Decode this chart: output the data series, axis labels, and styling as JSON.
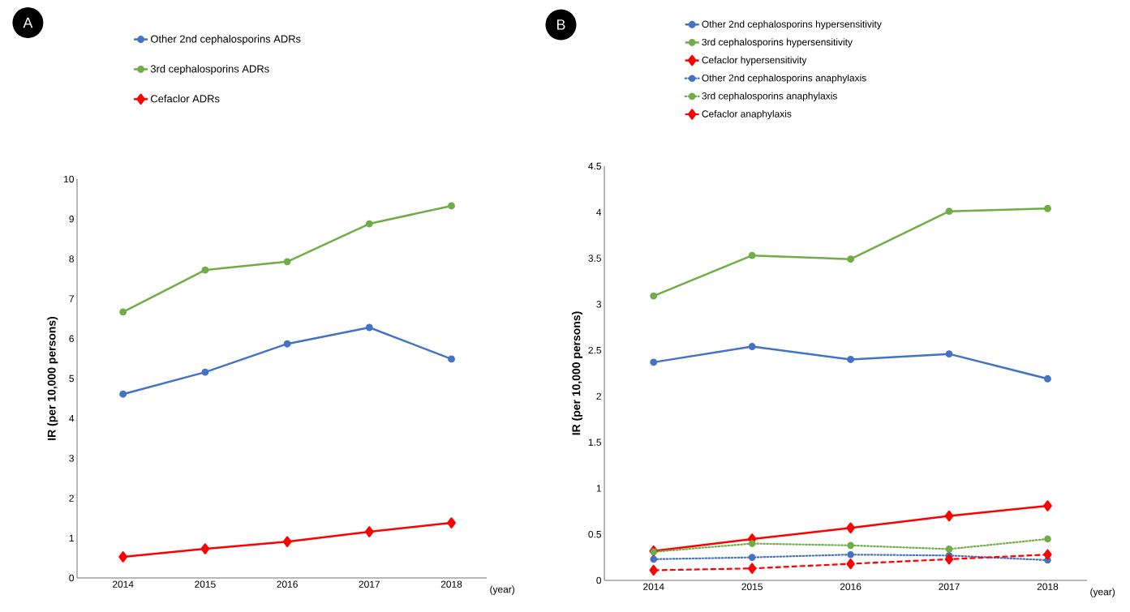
{
  "chart_data": [
    {
      "type": "line",
      "title": "A",
      "xlabel": "(year)",
      "ylabel": "IR (per 10,000 persons)",
      "categories": [
        "2014",
        "2015",
        "2016",
        "2017",
        "2018"
      ],
      "ylim": [
        0,
        10
      ],
      "yticks": [
        0,
        1,
        2,
        3,
        4,
        5,
        6,
        7,
        8,
        9,
        10
      ],
      "legend": "top",
      "grid": false,
      "series": [
        {
          "name": "Other 2nd cephalosporins ADRs",
          "color": "#4472c4",
          "marker": "circle",
          "line_style": "solid",
          "values": [
            4.61,
            5.16,
            5.87,
            6.28,
            5.49
          ]
        },
        {
          "name": "3rd cephalosporins ADRs",
          "color": "#70ad47",
          "marker": "circle",
          "line_style": "solid",
          "values": [
            6.67,
            7.72,
            7.93,
            8.88,
            9.33
          ]
        },
        {
          "name": "Cefaclor ADRs",
          "color": "#ff0000",
          "marker": "diamond",
          "line_style": "solid",
          "values": [
            0.53,
            0.73,
            0.91,
            1.16,
            1.38
          ]
        }
      ]
    },
    {
      "type": "line",
      "title": "B",
      "xlabel": "(year)",
      "ylabel": "IR (per 10,000 persons)",
      "categories": [
        "2014",
        "2015",
        "2016",
        "2017",
        "2018"
      ],
      "ylim": [
        0,
        4.5
      ],
      "yticks": [
        0,
        0.5,
        1,
        1.5,
        2,
        2.5,
        3,
        3.5,
        4,
        4.5
      ],
      "legend": "top",
      "grid": false,
      "series": [
        {
          "name": "Other 2nd cephalosporins hypersensitivity",
          "color": "#4472c4",
          "marker": "circle",
          "line_style": "solid",
          "values": [
            2.37,
            2.54,
            2.4,
            2.46,
            2.19
          ]
        },
        {
          "name": "3rd cephalosporins hypersensitivity",
          "color": "#70ad47",
          "marker": "circle",
          "line_style": "solid",
          "values": [
            3.09,
            3.53,
            3.49,
            4.01,
            4.04
          ]
        },
        {
          "name": "Cefaclor hypersensitivity",
          "color": "#ff0000",
          "marker": "diamond",
          "line_style": "solid",
          "values": [
            0.32,
            0.45,
            0.57,
            0.7,
            0.81
          ]
        },
        {
          "name": "Other 2nd cephalosporins anaphylaxis",
          "color": "#4472c4",
          "marker": "circle",
          "line_style": "dotted",
          "values": [
            0.23,
            0.25,
            0.28,
            0.27,
            0.22
          ]
        },
        {
          "name": "3rd cephalosporins anaphylaxis",
          "color": "#70ad47",
          "marker": "circle",
          "line_style": "dotted",
          "values": [
            0.31,
            0.4,
            0.38,
            0.34,
            0.45
          ]
        },
        {
          "name": "Cefaclor anaphylaxis",
          "color": "#ff0000",
          "marker": "diamond",
          "line_style": "dashed",
          "values": [
            0.11,
            0.13,
            0.18,
            0.23,
            0.28
          ]
        }
      ]
    }
  ]
}
